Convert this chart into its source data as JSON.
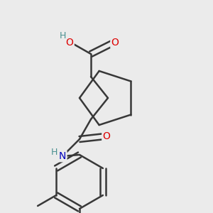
{
  "background_color": "#ebebeb",
  "bond_color": "#383838",
  "bond_width": 1.8,
  "atom_colors": {
    "O": "#dd0000",
    "N": "#0000bb",
    "H": "#4a9090",
    "C": "#383838"
  },
  "font_size": 10,
  "fig_width": 3.0,
  "fig_height": 3.0
}
